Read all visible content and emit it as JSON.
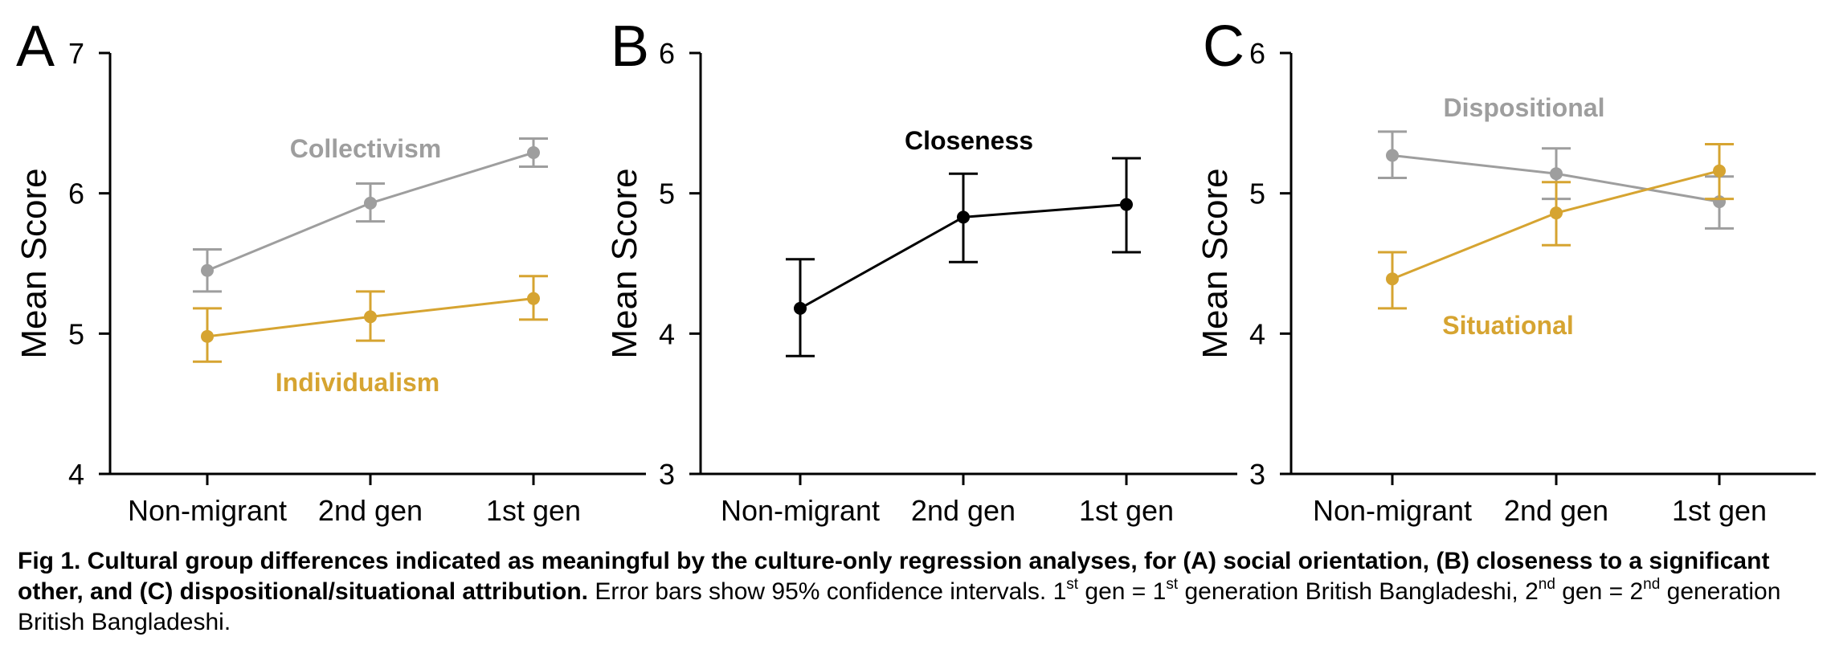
{
  "chart_data": [
    {
      "type": "line",
      "panel": "A",
      "categories": [
        "Non-migrant",
        "2nd gen",
        "1st gen"
      ],
      "ylabel": "Mean Score",
      "ylim": [
        4,
        7
      ],
      "yticks": [
        "4",
        "5",
        "6",
        "7"
      ],
      "grid": false,
      "series": [
        {
          "name": "Collectivism",
          "color": "#9e9e9e",
          "values": [
            5.45,
            5.93,
            6.29
          ],
          "ci_low": [
            5.3,
            5.8,
            6.19
          ],
          "ci_high": [
            5.6,
            6.07,
            6.39
          ]
        },
        {
          "name": "Individualism",
          "color": "#d6a431",
          "values": [
            4.98,
            5.12,
            5.25
          ],
          "ci_low": [
            4.8,
            4.95,
            5.1
          ],
          "ci_high": [
            5.18,
            5.3,
            5.41
          ]
        }
      ]
    },
    {
      "type": "line",
      "panel": "B",
      "categories": [
        "Non-migrant",
        "2nd gen",
        "1st gen"
      ],
      "ylabel": "Mean Score",
      "ylim": [
        3,
        6
      ],
      "yticks": [
        "3",
        "4",
        "5",
        "6"
      ],
      "grid": false,
      "series": [
        {
          "name": "Closeness",
          "color": "#000000",
          "values": [
            4.18,
            4.83,
            4.92
          ],
          "ci_low": [
            3.84,
            4.51,
            4.58
          ],
          "ci_high": [
            4.53,
            5.14,
            5.25
          ]
        }
      ]
    },
    {
      "type": "line",
      "panel": "C",
      "categories": [
        "Non-migrant",
        "2nd gen",
        "1st gen"
      ],
      "ylabel": "Mean Score",
      "ylim": [
        3,
        6
      ],
      "yticks": [
        "3",
        "4",
        "5",
        "6"
      ],
      "grid": false,
      "series": [
        {
          "name": "Dispositional",
          "color": "#9e9e9e",
          "values": [
            5.27,
            5.14,
            4.94
          ],
          "ci_low": [
            5.11,
            4.96,
            4.75
          ],
          "ci_high": [
            5.44,
            5.32,
            5.12
          ]
        },
        {
          "name": "Situational",
          "color": "#d6a431",
          "values": [
            4.39,
            4.86,
            5.16
          ],
          "ci_low": [
            4.18,
            4.63,
            4.96
          ],
          "ci_high": [
            4.58,
            5.08,
            5.35
          ]
        }
      ]
    }
  ],
  "caption": {
    "lead": "Fig 1. Cultural group differences indicated as meaningful by the culture-only regression analyses, for (A) social orientation, (B) closeness to a significant other, and (C) dispositional/situational attribution.",
    "text_1": " Error bars show 95% confidence intervals. 1",
    "sup_1": "st",
    "text_2": " gen = 1",
    "sup_2": "st",
    "text_3": " generation British Bangladeshi, 2",
    "sup_3": "nd",
    "text_4": " gen = 2",
    "sup_4": "nd",
    "text_5": " generation British Bangladeshi."
  }
}
